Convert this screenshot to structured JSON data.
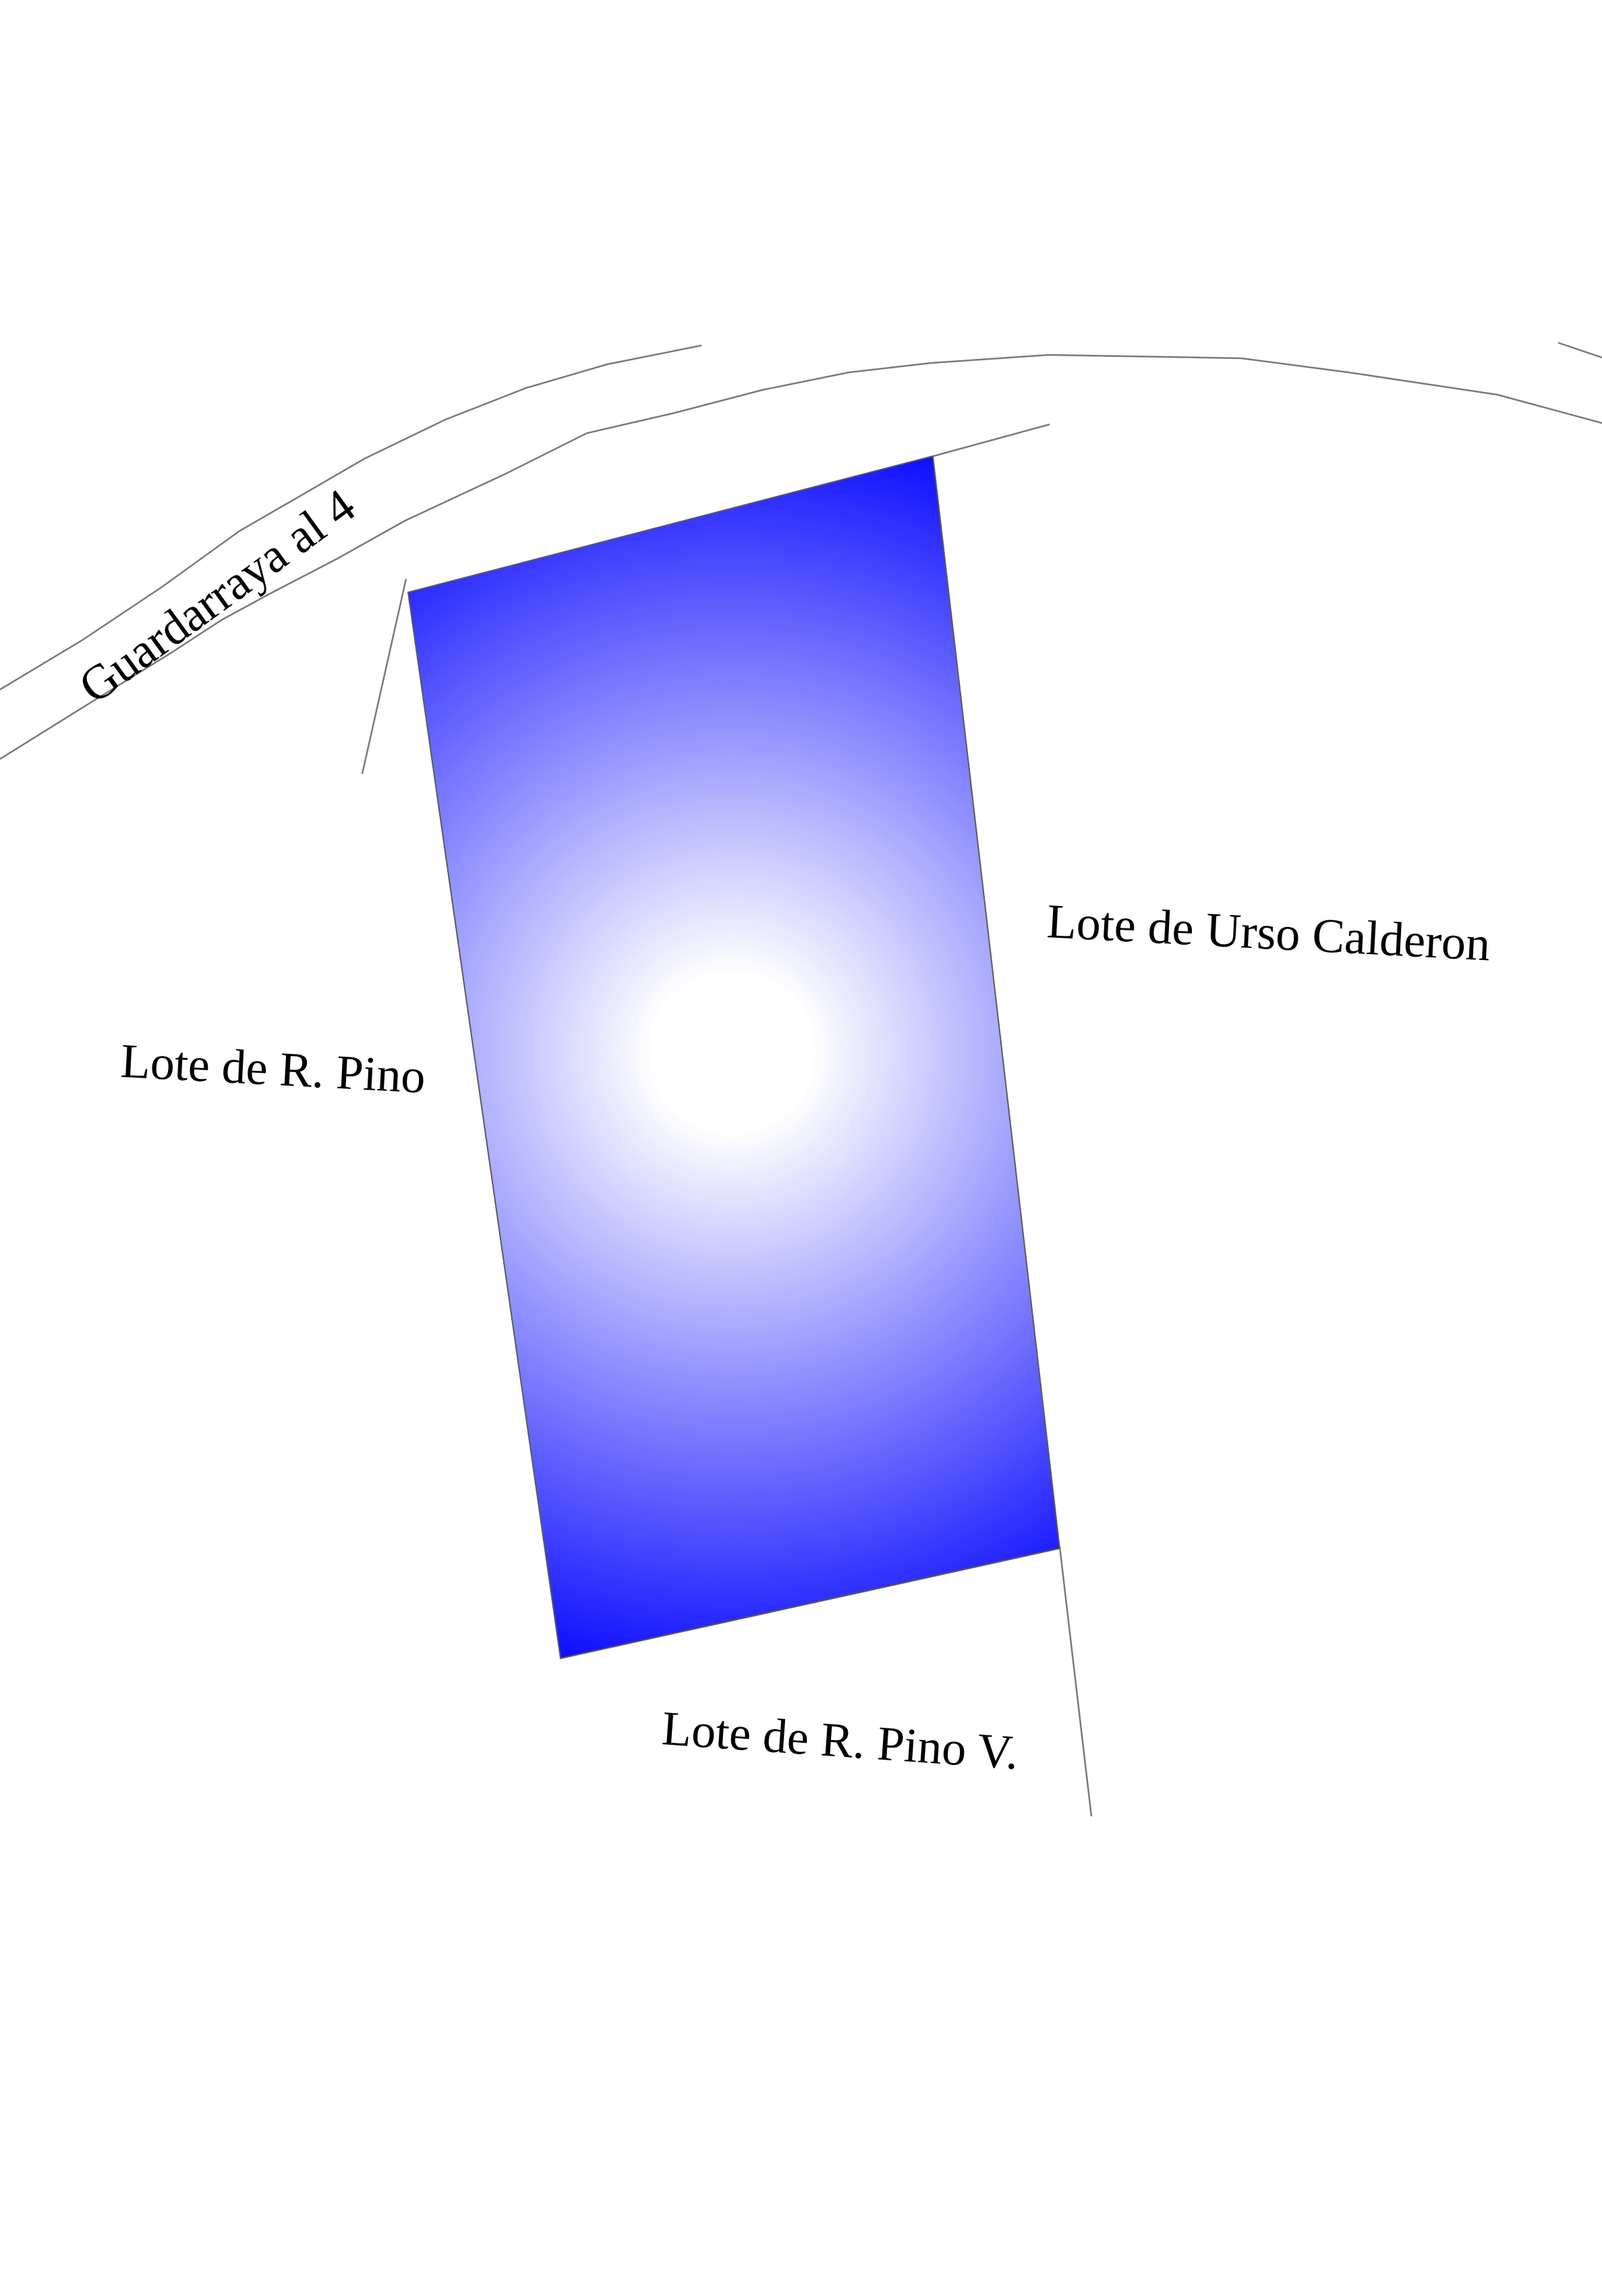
{
  "labels": {
    "road": "Guardarraya al 4",
    "east_lot": "Lote de Urso Calderon",
    "west_lot": "Lote de R. Pino",
    "south_lot": "Lote de R. Pino V."
  },
  "colors": {
    "parcel_edge": "#0000ff",
    "parcel_center": "#ffffff",
    "boundary_line": "#7a7a7a",
    "label_text": "#000000",
    "background": "#ffffff"
  }
}
